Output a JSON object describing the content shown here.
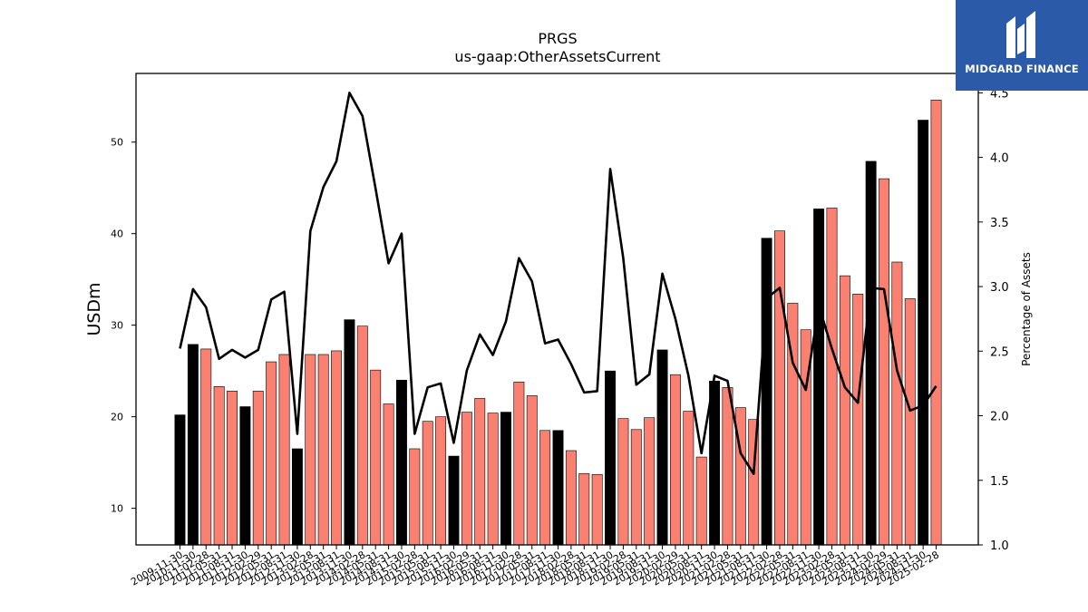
{
  "chart_data": {
    "type": "bar",
    "title": "PRGS",
    "subtitle": "us-gaap:OtherAssetsCurrent",
    "ylabel": "USDm",
    "y2label": "Percentage of Assets",
    "ylim": [
      6,
      57.5
    ],
    "y2lim": [
      1.0,
      4.65
    ],
    "yticks": [
      10,
      20,
      30,
      40,
      50
    ],
    "y2ticks": [
      "1.0",
      "1.5",
      "2.0",
      "2.5",
      "3.0",
      "3.5",
      "4.0",
      "4.5"
    ],
    "categories": [
      "2009-11-30",
      "2010-11-30",
      "2011-02-28",
      "2011-05-31",
      "2011-08-31",
      "2011-11-30",
      "2012-02-29",
      "2012-05-31",
      "2012-08-31",
      "2012-11-30",
      "2013-02-28",
      "2013-05-31",
      "2013-08-31",
      "2013-11-30",
      "2014-02-28",
      "2014-05-31",
      "2014-08-31",
      "2014-11-30",
      "2015-02-28",
      "2015-05-31",
      "2015-08-31",
      "2015-11-30",
      "2016-02-29",
      "2016-05-31",
      "2016-08-31",
      "2016-11-30",
      "2017-02-28",
      "2017-05-31",
      "2017-08-31",
      "2017-11-30",
      "2018-02-28",
      "2018-05-31",
      "2018-08-31",
      "2018-11-30",
      "2019-02-28",
      "2019-05-31",
      "2019-08-31",
      "2019-11-30",
      "2020-02-29",
      "2020-05-31",
      "2020-08-31",
      "2020-11-30",
      "2021-02-28",
      "2021-05-31",
      "2021-08-31",
      "2021-11-30",
      "2022-02-28",
      "2022-05-31",
      "2022-08-31",
      "2022-11-30",
      "2023-02-28",
      "2023-05-31",
      "2023-08-31",
      "2023-11-30",
      "2024-02-29",
      "2024-05-31",
      "2024-08-31",
      "2024-11-30",
      "2025-02-28"
    ],
    "series": [
      {
        "type": "bar",
        "values": [
          20.2,
          27.9,
          27.4,
          23.3,
          22.8,
          21.1,
          22.8,
          26.0,
          26.8,
          16.5,
          26.8,
          26.8,
          27.2,
          30.6,
          29.9,
          25.1,
          21.4,
          24.0,
          16.5,
          19.5,
          20.0,
          15.7,
          20.5,
          22.0,
          20.4,
          20.5,
          23.8,
          22.3,
          18.5,
          18.5,
          16.3,
          13.8,
          13.7,
          25.0,
          19.8,
          18.6,
          19.9,
          27.3,
          24.6,
          20.6,
          15.6,
          23.9,
          23.2,
          21.0,
          19.7,
          39.5,
          40.3,
          32.4,
          29.5,
          42.7,
          42.8,
          35.4,
          33.4,
          47.9,
          46.0,
          36.9,
          32.9,
          52.4,
          54.6
        ],
        "highlight": [
          true,
          true,
          false,
          false,
          false,
          true,
          false,
          false,
          false,
          true,
          false,
          false,
          false,
          true,
          false,
          false,
          false,
          true,
          false,
          false,
          false,
          true,
          false,
          false,
          false,
          true,
          false,
          false,
          false,
          true,
          false,
          false,
          false,
          true,
          false,
          false,
          false,
          true,
          false,
          false,
          false,
          true,
          false,
          false,
          false,
          true,
          false,
          false,
          false,
          true,
          false,
          false,
          false,
          true,
          false,
          false,
          false,
          true,
          false
        ]
      },
      {
        "type": "line",
        "axis": "right",
        "values": [
          2.52,
          2.98,
          2.84,
          2.44,
          2.51,
          2.45,
          2.51,
          2.9,
          2.96,
          1.86,
          3.43,
          3.77,
          3.97,
          4.5,
          4.32,
          3.76,
          3.18,
          3.41,
          1.86,
          2.22,
          2.25,
          1.79,
          2.35,
          2.63,
          2.47,
          2.73,
          3.22,
          3.04,
          2.56,
          2.59,
          2.4,
          2.18,
          2.19,
          3.91,
          3.22,
          2.24,
          2.32,
          3.1,
          2.75,
          2.31,
          1.71,
          2.31,
          2.27,
          1.71,
          1.55,
          2.91,
          2.99,
          2.41,
          2.2,
          2.85,
          2.52,
          2.22,
          2.1,
          2.99,
          2.98,
          2.35,
          2.04,
          2.08,
          2.23
        ]
      }
    ],
    "colors": {
      "highlight_bar": "#000000",
      "bar": "#fa8072",
      "line": "#000000"
    }
  },
  "logo": {
    "text": "MIDGARD FINANCE",
    "background": "#2a5aa8"
  }
}
